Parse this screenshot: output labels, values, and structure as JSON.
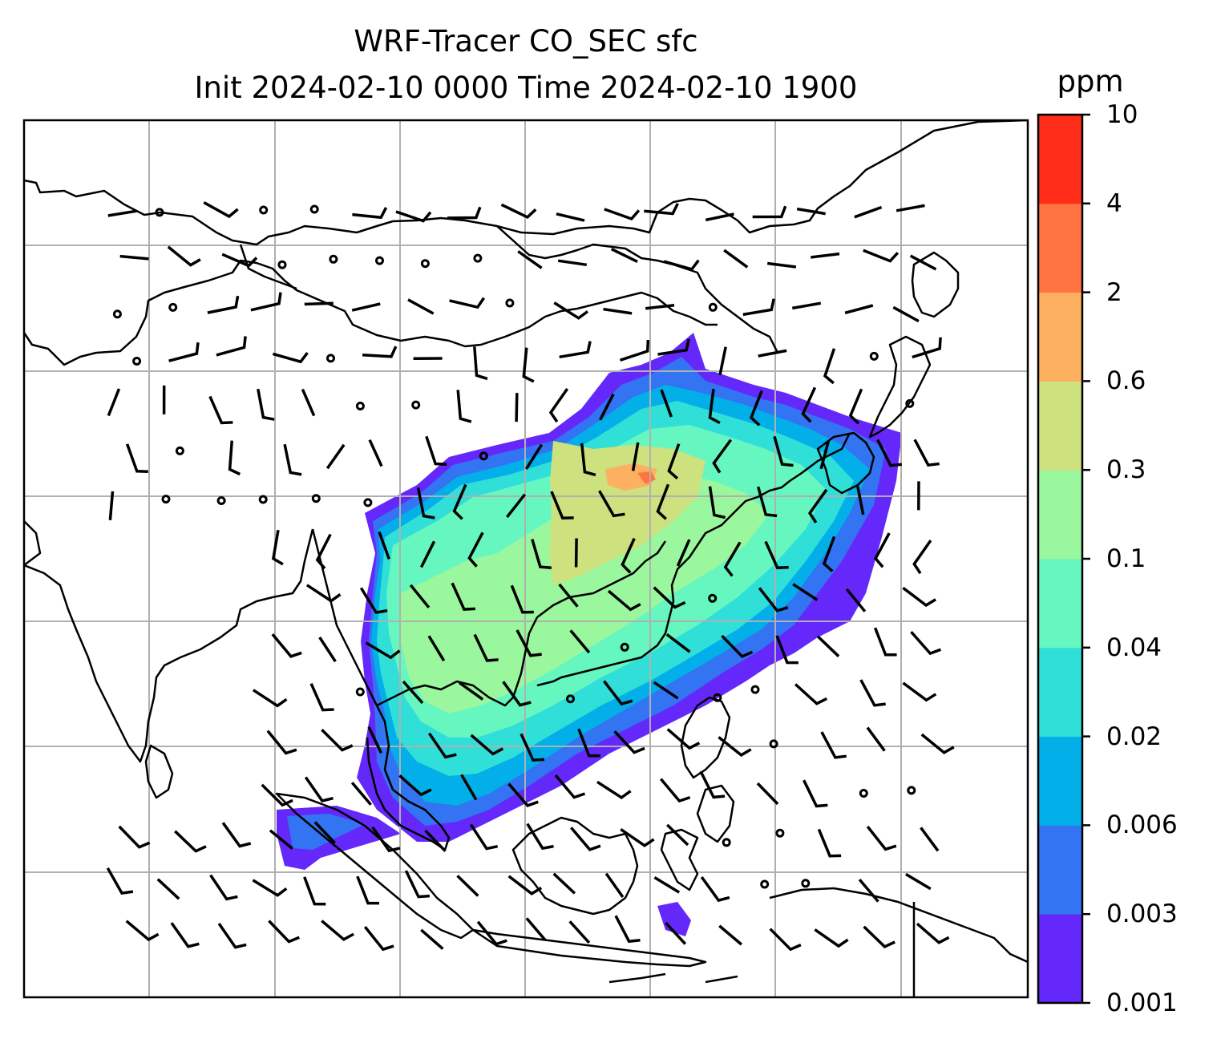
{
  "title": {
    "line1": "WRF-Tracer CO_SEC sfc",
    "line2": "Init 2024-02-10 0000 Time 2024-02-10 1900"
  },
  "colorbar": {
    "unit": "ppm",
    "levels": [
      "0.001",
      "0.003",
      "0.006",
      "0.02",
      "0.04",
      "0.1",
      "0.3",
      "0.6",
      "2",
      "4",
      "10"
    ],
    "colors": [
      "#6528fb",
      "#3274f2",
      "#03afe8",
      "#2fdfd8",
      "#66f6c0",
      "#9af79d",
      "#cde17f",
      "#fdb060",
      "#ff7442",
      "#ff2c19"
    ]
  },
  "map": {
    "graticule": "on",
    "wind_barbs": "on",
    "palette": {
      "coast": "#000000",
      "grid": "#b0b0b0",
      "background": "#ffffff"
    }
  }
}
